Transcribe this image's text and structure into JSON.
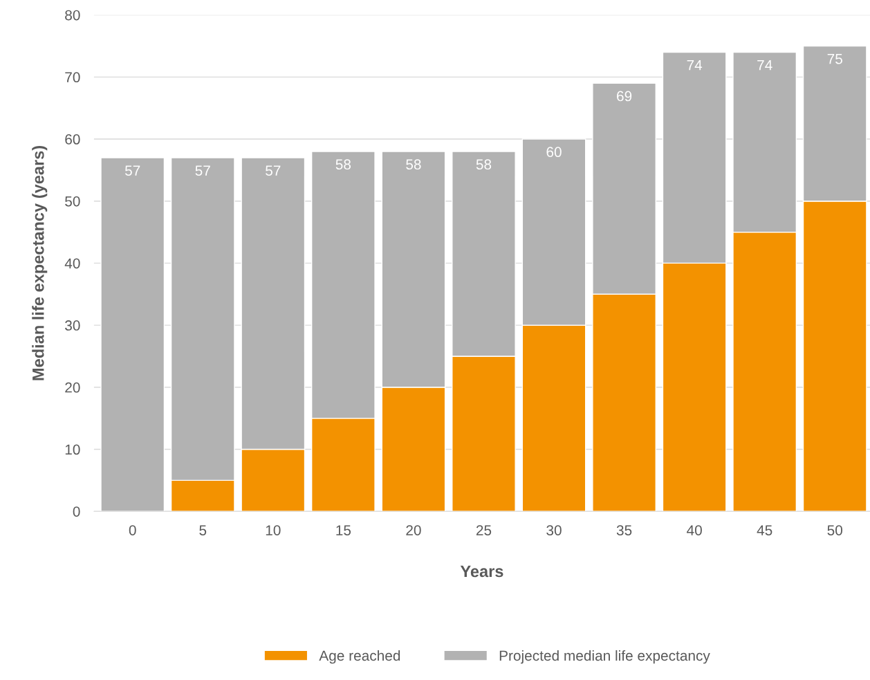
{
  "chart_data": {
    "type": "bar",
    "xlabel": "Years",
    "ylabel": "Median life expectancy (years)",
    "categories": [
      "0",
      "5",
      "10",
      "15",
      "20",
      "25",
      "30",
      "35",
      "40",
      "45",
      "50"
    ],
    "stacked": true,
    "series": [
      {
        "name": "Age reached",
        "color": "#f39200",
        "values": [
          0,
          5,
          10,
          15,
          20,
          25,
          30,
          35,
          40,
          45,
          50
        ]
      },
      {
        "name": "Projected median life expectancy",
        "color": "#b2b2b2",
        "values": [
          57,
          52,
          47,
          43,
          38,
          33,
          30,
          34,
          34,
          29,
          25
        ]
      }
    ],
    "totals": [
      "57",
      "57",
      "57",
      "58",
      "58",
      "58",
      "60",
      "69",
      "74",
      "74",
      "75"
    ],
    "ylim": [
      0,
      80
    ],
    "yticks": [
      0,
      10,
      20,
      30,
      40,
      50,
      60,
      70,
      80
    ],
    "grid": "y",
    "legend": "bottom"
  }
}
